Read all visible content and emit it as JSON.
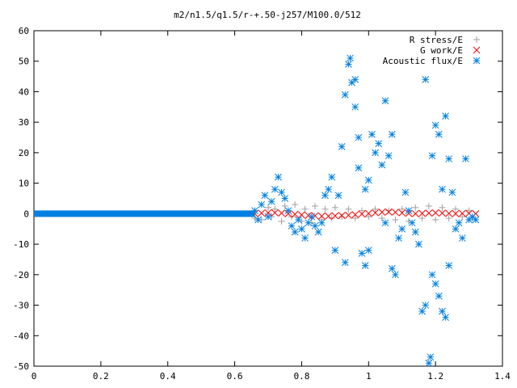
{
  "chart_data": {
    "type": "scatter",
    "title": "m2/n1.5/q1.5/r-+.50-j257/M100.0/512",
    "xlabel": "",
    "ylabel": "",
    "xlim": [
      0,
      1.4
    ],
    "ylim": [
      -50,
      60
    ],
    "x_ticks": [
      "0",
      "0.2",
      "0.4",
      "0.6",
      "0.8",
      "1",
      "1.2",
      "1.4"
    ],
    "y_ticks": [
      "60",
      "50",
      "40",
      "30",
      "20",
      "10",
      "0",
      "-10",
      "-20",
      "-30",
      "-40",
      "-50"
    ],
    "legend_position": "top-right",
    "series": [
      {
        "name": "R stress/E",
        "marker": "plus",
        "color": "#a0a0a0",
        "points": [
          [
            0.66,
            -1.5
          ],
          [
            0.68,
            -2.0
          ],
          [
            0.7,
            2.0
          ],
          [
            0.71,
            -1.0
          ],
          [
            0.72,
            1.5
          ],
          [
            0.74,
            -2.5
          ],
          [
            0.75,
            2.5
          ],
          [
            0.77,
            -1.0
          ],
          [
            0.78,
            3.0
          ],
          [
            0.8,
            -2.5
          ],
          [
            0.81,
            1.5
          ],
          [
            0.83,
            -3.0
          ],
          [
            0.84,
            2.5
          ],
          [
            0.86,
            -2.0
          ],
          [
            0.87,
            1.5
          ],
          [
            0.89,
            -1.5
          ],
          [
            0.9,
            2.0
          ],
          [
            0.92,
            -1.0
          ],
          [
            0.94,
            1.5
          ],
          [
            0.96,
            -1.5
          ],
          [
            0.98,
            1.0
          ],
          [
            1.0,
            -1.0
          ],
          [
            1.02,
            1.5
          ],
          [
            1.04,
            -1.5
          ],
          [
            1.06,
            1.0
          ],
          [
            1.08,
            -2.0
          ],
          [
            1.1,
            1.5
          ],
          [
            1.12,
            -2.5
          ],
          [
            1.14,
            2.0
          ],
          [
            1.16,
            -1.5
          ],
          [
            1.18,
            2.5
          ],
          [
            1.2,
            -2.0
          ],
          [
            1.22,
            2.0
          ],
          [
            1.24,
            -1.5
          ],
          [
            1.26,
            1.5
          ],
          [
            1.28,
            -1.0
          ],
          [
            1.3,
            1.0
          ],
          [
            1.31,
            -1.5
          ]
        ]
      },
      {
        "name": "G work/E",
        "marker": "cross",
        "color": "#ff0000",
        "points": [
          [
            0.66,
            0.0
          ],
          [
            0.68,
            0.2
          ],
          [
            0.7,
            0.3
          ],
          [
            0.72,
            0.3
          ],
          [
            0.74,
            0.2
          ],
          [
            0.76,
            0.0
          ],
          [
            0.78,
            -0.2
          ],
          [
            0.8,
            -0.4
          ],
          [
            0.82,
            -0.6
          ],
          [
            0.84,
            -0.7
          ],
          [
            0.86,
            -0.8
          ],
          [
            0.88,
            -0.8
          ],
          [
            0.9,
            -0.7
          ],
          [
            0.92,
            -0.6
          ],
          [
            0.94,
            -0.5
          ],
          [
            0.96,
            -0.3
          ],
          [
            0.98,
            -0.1
          ],
          [
            1.0,
            0.1
          ],
          [
            1.02,
            0.3
          ],
          [
            1.04,
            0.5
          ],
          [
            1.06,
            0.6
          ],
          [
            1.08,
            0.5
          ],
          [
            1.1,
            0.3
          ],
          [
            1.12,
            0.1
          ],
          [
            1.14,
            0.0
          ],
          [
            1.16,
            0.1
          ],
          [
            1.18,
            0.2
          ],
          [
            1.2,
            0.3
          ],
          [
            1.22,
            0.2
          ],
          [
            1.24,
            0.1
          ],
          [
            1.26,
            0.0
          ],
          [
            1.28,
            0.1
          ],
          [
            1.3,
            0.1
          ],
          [
            1.32,
            0.0
          ]
        ]
      },
      {
        "name": "Acoustic flux/E",
        "marker": "star",
        "color": "#0080e0",
        "baseline_x_range": [
          0,
          0.66
        ],
        "points": [
          [
            0.66,
            1.0
          ],
          [
            0.67,
            -2.0
          ],
          [
            0.68,
            3.0
          ],
          [
            0.69,
            6.0
          ],
          [
            0.7,
            -1.0
          ],
          [
            0.71,
            4.0
          ],
          [
            0.72,
            8.0
          ],
          [
            0.73,
            12.0
          ],
          [
            0.74,
            7.0
          ],
          [
            0.75,
            5.0
          ],
          [
            0.76,
            1.0
          ],
          [
            0.77,
            -4.0
          ],
          [
            0.78,
            -6.0
          ],
          [
            0.79,
            -2.0
          ],
          [
            0.8,
            -5.0
          ],
          [
            0.81,
            -8.0
          ],
          [
            0.82,
            -3.0
          ],
          [
            0.83,
            -1.0
          ],
          [
            0.84,
            -4.0
          ],
          [
            0.85,
            -6.0
          ],
          [
            0.86,
            -3.0
          ],
          [
            0.87,
            6.0
          ],
          [
            0.88,
            8.0
          ],
          [
            0.89,
            12.0
          ],
          [
            0.9,
            -12.0
          ],
          [
            0.91,
            6.0
          ],
          [
            0.92,
            22.0
          ],
          [
            0.93,
            -16.0
          ],
          [
            0.93,
            39.0
          ],
          [
            0.94,
            49.0
          ],
          [
            0.945,
            51.0
          ],
          [
            0.95,
            43.0
          ],
          [
            0.96,
            44.0
          ],
          [
            0.96,
            35.0
          ],
          [
            0.97,
            25.0
          ],
          [
            0.97,
            15.0
          ],
          [
            0.98,
            -13.0
          ],
          [
            0.99,
            -17.0
          ],
          [
            0.99,
            8.0
          ],
          [
            1.0,
            -12.0
          ],
          [
            1.0,
            11.0
          ],
          [
            1.01,
            26.0
          ],
          [
            1.02,
            20.0
          ],
          [
            1.03,
            23.0
          ],
          [
            1.04,
            16.0
          ],
          [
            1.05,
            -3.0
          ],
          [
            1.05,
            37.0
          ],
          [
            1.06,
            19.0
          ],
          [
            1.07,
            26.0
          ],
          [
            1.07,
            -18.0
          ],
          [
            1.08,
            -20.0
          ],
          [
            1.09,
            -8.0
          ],
          [
            1.1,
            -5.0
          ],
          [
            1.11,
            7.0
          ],
          [
            1.12,
            1.0
          ],
          [
            1.13,
            -3.0
          ],
          [
            1.14,
            -6.0
          ],
          [
            1.15,
            -10.0
          ],
          [
            1.16,
            -32.0
          ],
          [
            1.17,
            -30.0
          ],
          [
            1.17,
            44.0
          ],
          [
            1.18,
            -49.0
          ],
          [
            1.185,
            -47.0
          ],
          [
            1.19,
            19.0
          ],
          [
            1.19,
            -20.0
          ],
          [
            1.2,
            -23.0
          ],
          [
            1.2,
            29.0
          ],
          [
            1.21,
            26.0
          ],
          [
            1.21,
            -27.0
          ],
          [
            1.22,
            -32.0
          ],
          [
            1.22,
            8.0
          ],
          [
            1.23,
            -34.0
          ],
          [
            1.23,
            32.0
          ],
          [
            1.24,
            18.0
          ],
          [
            1.24,
            -17.0
          ],
          [
            1.25,
            7.0
          ],
          [
            1.26,
            -5.0
          ],
          [
            1.27,
            -3.0
          ],
          [
            1.28,
            -8.0
          ],
          [
            1.29,
            18.0
          ],
          [
            1.3,
            -2.0
          ],
          [
            1.31,
            -1.0
          ],
          [
            1.32,
            -2.0
          ]
        ]
      }
    ]
  }
}
